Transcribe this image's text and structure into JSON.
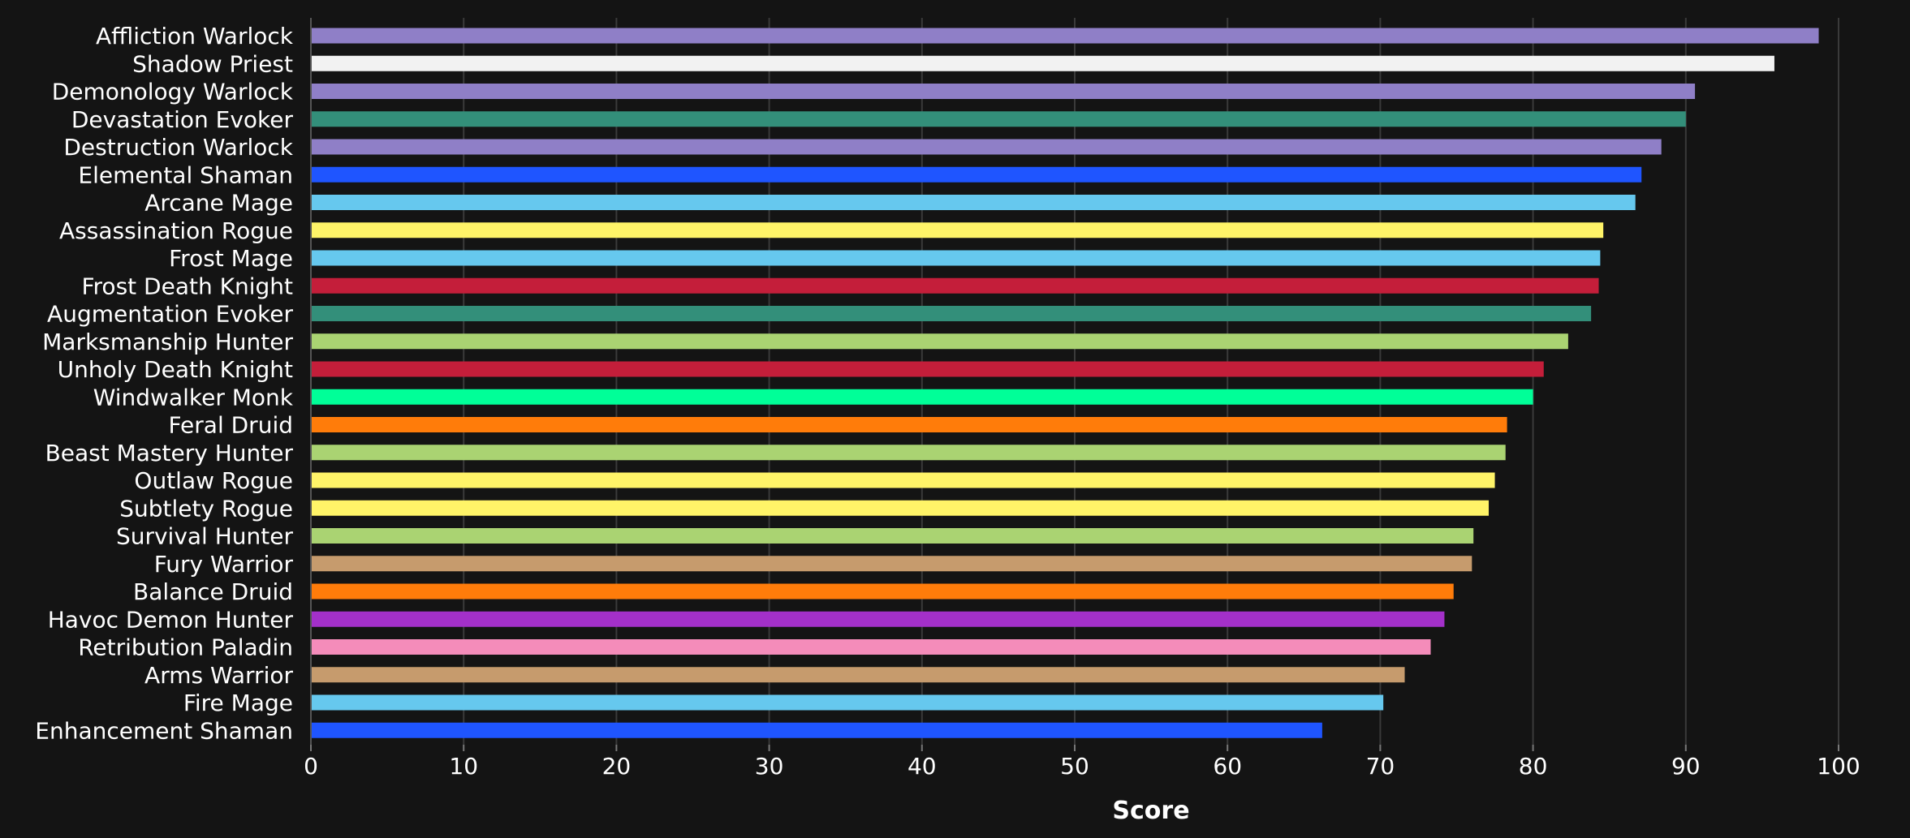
{
  "chart_data": {
    "type": "bar",
    "orientation": "horizontal",
    "xlabel": "Score",
    "ylabel": "",
    "xlim": [
      0,
      100
    ],
    "ticks": [
      "0",
      "10",
      "20",
      "30",
      "40",
      "50",
      "60",
      "70",
      "80",
      "90",
      "100"
    ],
    "tick_values": [
      0,
      10,
      20,
      30,
      40,
      50,
      60,
      70,
      80,
      90,
      100
    ],
    "grid": true,
    "categories": [
      "Affliction Warlock",
      "Shadow Priest",
      "Demonology Warlock",
      "Devastation Evoker",
      "Destruction Warlock",
      "Elemental Shaman",
      "Arcane Mage",
      "Assassination Rogue",
      "Frost Mage",
      "Frost Death Knight",
      "Augmentation Evoker",
      "Marksmanship Hunter",
      "Unholy Death Knight",
      "Windwalker Monk",
      "Feral Druid",
      "Beast Mastery Hunter",
      "Outlaw Rogue",
      "Subtlety Rogue",
      "Survival Hunter",
      "Fury Warrior",
      "Balance Druid",
      "Havoc Demon Hunter",
      "Retribution Paladin",
      "Arms Warrior",
      "Fire Mage",
      "Enhancement Shaman"
    ],
    "values": [
      98.7,
      95.8,
      90.6,
      90.0,
      88.4,
      87.1,
      86.7,
      84.6,
      84.4,
      84.3,
      83.8,
      82.3,
      80.7,
      80.0,
      78.3,
      78.2,
      77.5,
      77.1,
      76.1,
      76.0,
      74.8,
      74.2,
      73.3,
      71.6,
      70.2,
      66.2
    ],
    "colors": [
      "#8f7fc7",
      "#f2f2f2",
      "#8f7fc7",
      "#338f7a",
      "#8f7fc7",
      "#1f55ff",
      "#66c8ee",
      "#fff468",
      "#66c8ee",
      "#c41e3a",
      "#338f7a",
      "#aad372",
      "#c41e3a",
      "#00ff98",
      "#ff7c0a",
      "#aad372",
      "#fff468",
      "#fff468",
      "#aad372",
      "#c69b6d",
      "#ff7c0a",
      "#a330c9",
      "#f48cba",
      "#c69b6d",
      "#66c8ee",
      "#1f55ff"
    ],
    "background_color": "#141414",
    "text_color": "#ffffff",
    "grid_color": "#3a3a3a"
  }
}
